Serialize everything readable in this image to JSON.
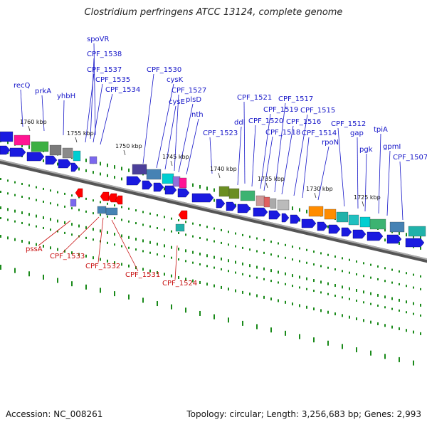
{
  "header": {
    "title": "Clostridium perfringens ATCC 13124, complete genome"
  },
  "footer": {
    "accession": "Accession: NC_008261",
    "summary": "Topology: circular; Length: 3,256,683 bp; Genes: 2,993"
  },
  "colors": {
    "forward_label": "#1515c8",
    "reverse_label": "#c81010",
    "gene_arrow": "#1a1ae0",
    "tick_green": "#1a8a1a",
    "backbone": "#777777"
  },
  "position_ticks": [
    "1760 kbp",
    "1755 kbp",
    "1750 kbp",
    "1745 kbp",
    "1740 kbp",
    "1735 kbp",
    "1730 kbp",
    "1725 kbp"
  ],
  "forward_genes": [
    "spoVR",
    "CPF_1538",
    "CPF_1537",
    "CPF_1535",
    "CPF_1534",
    "recQ",
    "prkA",
    "yhbH",
    "CPF_1530",
    "cysK",
    "cysE",
    "CPF_1527",
    "plsD",
    "nth",
    "CPF_1523",
    "CPF_1521",
    "ddl",
    "CPF_1520",
    "CPF_1519",
    "CPF_1518",
    "CPF_1517",
    "CPF_1516",
    "CPF_1515",
    "CPF_1514",
    "rpoN",
    "CPF_1512",
    "gap",
    "pgk",
    "tpiA",
    "gpmI",
    "CPF_1507"
  ],
  "reverse_genes": [
    "pssA",
    "CPF_1533",
    "CPF_1532",
    "CPF_1531",
    "CPF_1524"
  ]
}
